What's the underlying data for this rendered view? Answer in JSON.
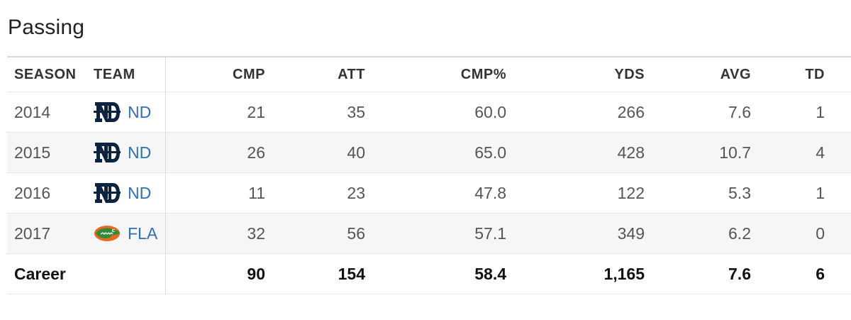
{
  "title": "Passing",
  "columns": {
    "season": "SEASON",
    "team": "TEAM",
    "cmp": "CMP",
    "att": "ATT",
    "pct": "CMP%",
    "yds": "YDS",
    "avg": "AVG",
    "td": "TD"
  },
  "rows": [
    {
      "season": "2014",
      "team": "ND",
      "logo": "notre-dame-logo-icon",
      "cmp": "21",
      "att": "35",
      "pct": "60.0",
      "yds": "266",
      "avg": "7.6",
      "td": "1"
    },
    {
      "season": "2015",
      "team": "ND",
      "logo": "notre-dame-logo-icon",
      "cmp": "26",
      "att": "40",
      "pct": "65.0",
      "yds": "428",
      "avg": "10.7",
      "td": "4"
    },
    {
      "season": "2016",
      "team": "ND",
      "logo": "notre-dame-logo-icon",
      "cmp": "11",
      "att": "23",
      "pct": "47.8",
      "yds": "122",
      "avg": "5.3",
      "td": "1"
    },
    {
      "season": "2017",
      "team": "FLA",
      "logo": "florida-gator-logo-icon",
      "cmp": "32",
      "att": "56",
      "pct": "57.1",
      "yds": "349",
      "avg": "6.2",
      "td": "0"
    }
  ],
  "career": {
    "label": "Career",
    "cmp": "90",
    "att": "154",
    "pct": "58.4",
    "yds": "1,165",
    "avg": "7.6",
    "td": "6"
  },
  "colors": {
    "link": "#2f6fb5",
    "nd_navy": "#0c2340",
    "fla_orange": "#e66a1f",
    "fla_green": "#2e8b3a"
  }
}
